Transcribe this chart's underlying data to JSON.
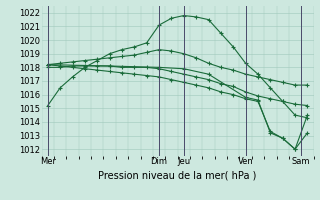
{
  "title": "",
  "xlabel": "Pression niveau de la mer( hPa )",
  "ylim": [
    1011.5,
    1022.5
  ],
  "yticks": [
    1012,
    1013,
    1014,
    1015,
    1016,
    1017,
    1018,
    1019,
    1020,
    1021,
    1022
  ],
  "background_color": "#cde8df",
  "grid_color": "#a0c8bc",
  "line_color": "#1a6b3a",
  "day_labels": [
    "Mer",
    "",
    "Dim",
    "Jeu",
    "",
    "Ven",
    "",
    "Sam"
  ],
  "vline_positions": [
    0.0,
    9.0,
    11.0,
    16.0,
    20.5
  ],
  "vline_labels": [
    "Mer",
    "Dim",
    "Jeu",
    "Ven",
    "Sam"
  ],
  "xlim": [
    -0.5,
    21.5
  ],
  "series": [
    {
      "x": [
        0,
        1,
        2,
        3,
        4,
        5,
        6,
        7,
        8,
        9,
        10,
        11,
        12,
        13,
        14,
        15,
        16,
        17,
        18,
        19,
        20,
        21
      ],
      "y": [
        1015.2,
        1016.5,
        1017.3,
        1018.0,
        1018.5,
        1019.0,
        1019.3,
        1019.5,
        1019.8,
        1021.1,
        1021.6,
        1021.8,
        1021.7,
        1021.5,
        1020.5,
        1019.5,
        1018.3,
        1017.5,
        1016.5,
        1015.5,
        1014.5,
        1014.3
      ]
    },
    {
      "x": [
        0,
        1,
        2,
        3,
        4,
        5,
        6,
        7,
        8,
        9,
        10,
        11,
        12,
        13,
        14,
        15,
        16,
        17,
        18,
        19,
        20,
        21
      ],
      "y": [
        1018.2,
        1018.3,
        1018.4,
        1018.5,
        1018.6,
        1018.7,
        1018.8,
        1018.9,
        1019.1,
        1019.3,
        1019.2,
        1019.0,
        1018.7,
        1018.3,
        1018.0,
        1017.8,
        1017.5,
        1017.3,
        1017.1,
        1016.9,
        1016.7,
        1016.7
      ]
    },
    {
      "x": [
        0,
        1,
        2,
        3,
        4,
        5,
        6,
        7,
        8,
        9,
        10,
        11,
        12,
        13,
        14,
        15,
        16,
        17,
        18,
        19,
        20,
        21
      ],
      "y": [
        1018.0,
        1018.0,
        1018.1,
        1018.1,
        1018.1,
        1018.1,
        1018.0,
        1018.0,
        1018.0,
        1017.9,
        1017.7,
        1017.5,
        1017.3,
        1017.1,
        1016.8,
        1016.6,
        1016.2,
        1015.9,
        1015.7,
        1015.5,
        1015.3,
        1015.2
      ]
    },
    {
      "x": [
        0,
        1,
        2,
        3,
        4,
        5,
        6,
        7,
        8,
        9,
        10,
        11,
        12,
        13,
        14,
        15,
        16,
        17,
        18,
        19,
        20,
        21
      ],
      "y": [
        1018.2,
        1018.1,
        1018.0,
        1017.9,
        1017.8,
        1017.7,
        1017.6,
        1017.5,
        1017.4,
        1017.3,
        1017.1,
        1016.9,
        1016.7,
        1016.5,
        1016.2,
        1016.0,
        1015.7,
        1015.5,
        1013.3,
        1012.8,
        1012.0,
        1013.2
      ]
    },
    {
      "x": [
        0,
        5,
        9,
        11,
        13,
        16,
        17,
        18,
        19,
        20,
        21
      ],
      "y": [
        1018.2,
        1018.1,
        1018.0,
        1017.9,
        1017.5,
        1015.8,
        1015.6,
        1013.2,
        1012.8,
        1012.0,
        1014.5
      ]
    }
  ]
}
